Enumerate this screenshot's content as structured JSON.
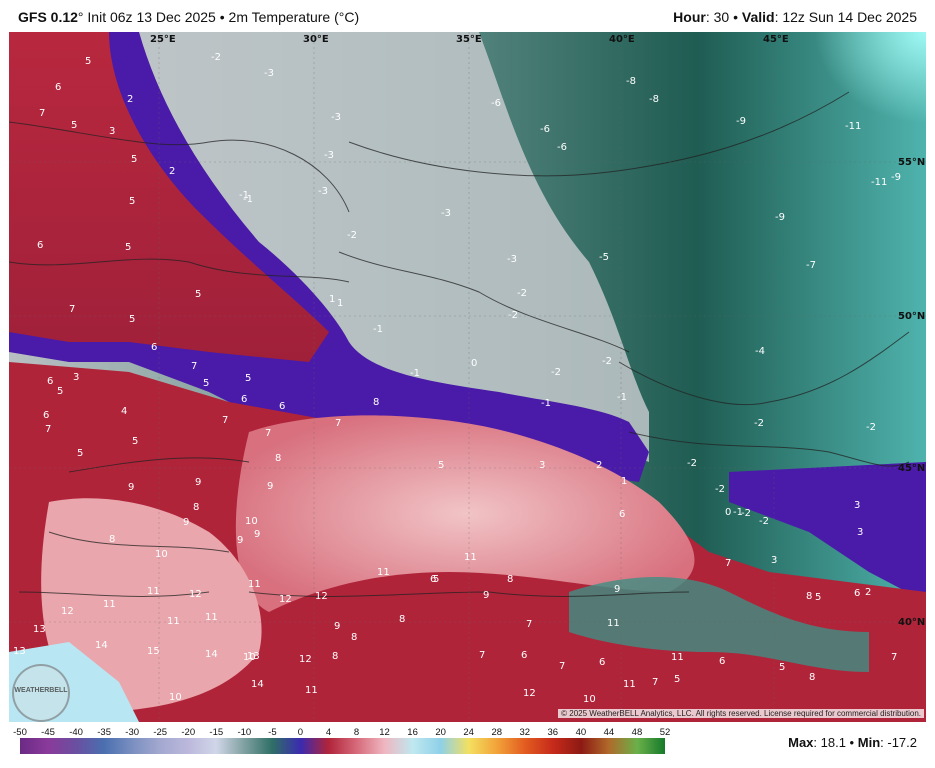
{
  "header": {
    "model": "GFS 0.12",
    "degree": "°",
    "init": "Init 06z 13 Dec 2025",
    "sep": "•",
    "product": "2m Temperature (°C)",
    "hour_label": "Hour",
    "hour_value": ": 30",
    "valid_label": "Valid",
    "valid_value": ": 12z Sun 14 Dec 2025"
  },
  "map": {
    "lon_labels": [
      "25°E",
      "30°E",
      "35°E",
      "40°E",
      "45°E"
    ],
    "lat_labels": [
      "55°N",
      "50°N",
      "45°N",
      "40°N"
    ],
    "colors": {
      "warm_red": "#b0243a",
      "pink": "#e79aa0",
      "purple": "#4a1aa8",
      "grey": "#c5c9cc",
      "teal_dark": "#1d5a50",
      "teal_light": "#4fb3ad",
      "cyan": "#8ff5f0"
    },
    "temps": [
      "5",
      "6",
      "7",
      "2",
      "3",
      "5",
      "2",
      "5",
      "6",
      "5",
      "-2",
      "-3",
      "-3",
      "-3",
      "-6",
      "-8",
      "-8",
      "-6",
      "-6",
      "-9",
      "-11",
      "-11",
      "-9",
      "-9",
      "-7",
      "-3",
      "-1",
      "-1",
      "-3",
      "-2",
      "-3",
      "-5",
      "-2",
      "-2",
      "-4",
      "1",
      "1",
      "-1",
      "-1",
      "0",
      "-2",
      "-2",
      "-1",
      "-1",
      "-2",
      "-2",
      "-2",
      "-2",
      "0",
      "-1",
      "-2",
      "-2",
      "3",
      "5",
      "3",
      "5",
      "7",
      "5",
      "6",
      "7",
      "5",
      "5",
      "4",
      "5",
      "6",
      "6",
      "7",
      "6",
      "7",
      "5",
      "5",
      "5",
      "3",
      "2",
      "1",
      "6",
      "3",
      "6",
      "7",
      "7",
      "8",
      "9",
      "9",
      "8",
      "9",
      "8",
      "9",
      "10",
      "8",
      "9",
      "10",
      "9",
      "11",
      "11",
      "11",
      "6",
      "8",
      "9",
      "9",
      "12",
      "12",
      "11",
      "11",
      "12",
      "12",
      "13",
      "11",
      "11",
      "13",
      "14",
      "15",
      "14",
      "13",
      "14",
      "10",
      "10",
      "11",
      "12",
      "9",
      "8",
      "8",
      "8",
      "7",
      "6",
      "5",
      "7",
      "7",
      "6",
      "11",
      "11",
      "12",
      "10",
      "11",
      "7",
      "5",
      "8",
      "6",
      "5",
      "5",
      "6",
      "8",
      "7",
      "2",
      "3",
      "7",
      "6",
      "2",
      "5",
      "5",
      "7"
    ]
  },
  "copyright": "© 2025 WeatherBELL Analytics, LLC. All rights reserved. License required for commercial distribution.",
  "logo": "WEATHERBELL",
  "colorbar": {
    "ticks": [
      "-50",
      "-45",
      "-40",
      "-35",
      "-30",
      "-25",
      "-20",
      "-15",
      "-10",
      "-5",
      "0",
      "4",
      "8",
      "12",
      "16",
      "20",
      "24",
      "28",
      "32",
      "36",
      "40",
      "44",
      "48",
      "52"
    ],
    "stops": [
      "#6b2a85",
      "#8a3a9a",
      "#6a4fa0",
      "#4a6fb0",
      "#7a8fc0",
      "#a3a8d0",
      "#bcb8dc",
      "#d0d6e8",
      "#7fa0a0",
      "#2f6f66",
      "#3a2bb0",
      "#b0243a",
      "#d66a7a",
      "#efb6c0",
      "#bfe8f0",
      "#8fd0e8",
      "#f3e060",
      "#f2a33a",
      "#e25c20",
      "#c72a1a",
      "#8c1a14",
      "#b06a2a",
      "#6ab04a",
      "#157a2a"
    ]
  },
  "stats": {
    "max_label": "Max",
    "max_value": ": 18.1 •",
    "min_label": "Min",
    "min_value": ": -17.2"
  }
}
